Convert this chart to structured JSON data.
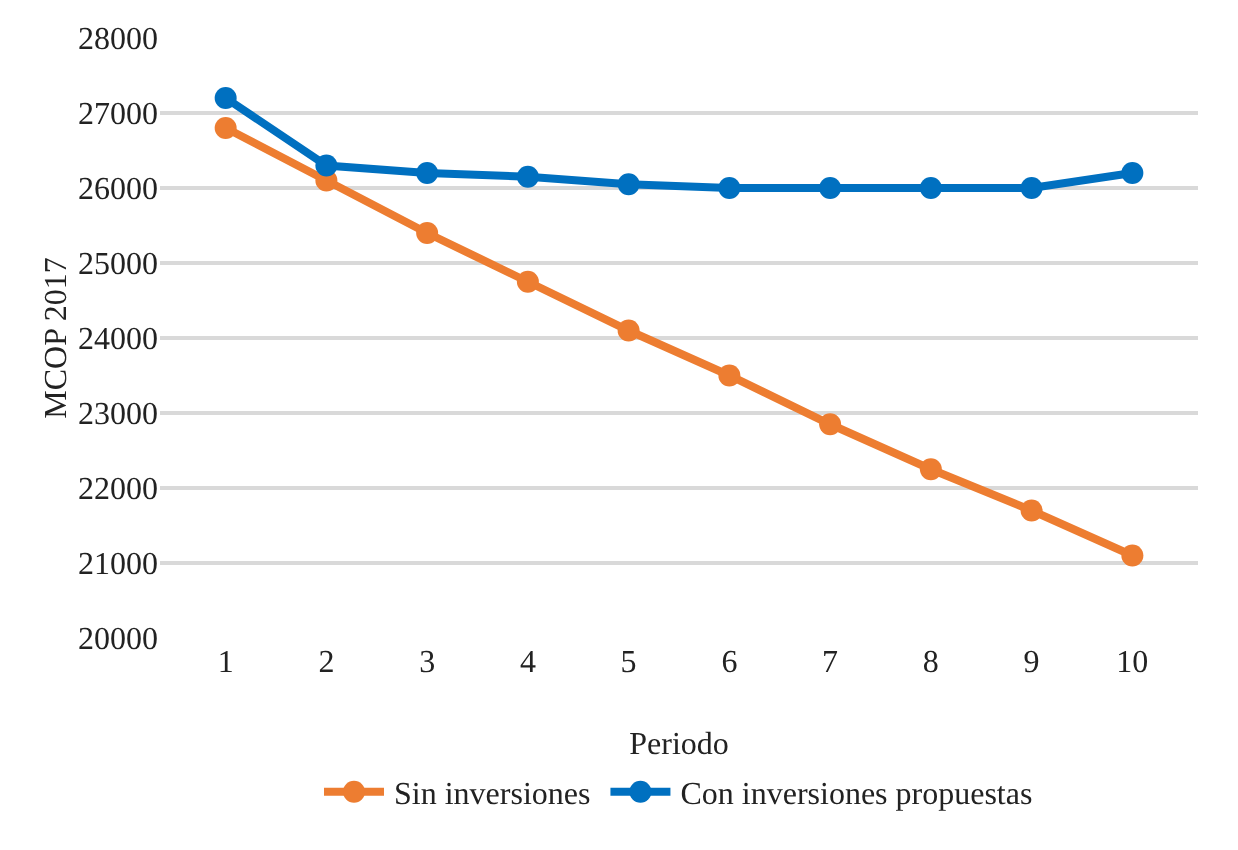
{
  "chart_data": {
    "type": "line",
    "xlabel": "Periodo",
    "ylabel": "MCOP 2017",
    "categories": [
      "1",
      "2",
      "3",
      "4",
      "5",
      "6",
      "7",
      "8",
      "9",
      "10"
    ],
    "series": [
      {
        "name": "Sin inversiones",
        "color": "#ed7d31",
        "values": [
          26800,
          26100,
          25400,
          24750,
          24100,
          23500,
          22850,
          22250,
          21700,
          21100
        ]
      },
      {
        "name": "Con inversiones propuestas",
        "color": "#0070c0",
        "values": [
          27200,
          26300,
          26200,
          26150,
          26050,
          26000,
          26000,
          26000,
          26000,
          26200
        ]
      }
    ],
    "ylim": [
      20000,
      28000
    ],
    "yticks": [
      20000,
      21000,
      22000,
      23000,
      24000,
      25000,
      26000,
      27000,
      28000
    ],
    "grid": "y",
    "legend": "bottom",
    "marker": "circle",
    "line_style": "solid"
  }
}
